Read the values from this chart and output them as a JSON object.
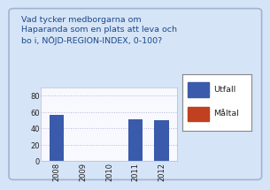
{
  "title_lines": [
    "Vad tycker medborgarna om",
    "Haparanda som en plats att leva och",
    "bo i, NÖJD-REGION-INDEX, 0-100?"
  ],
  "categories": [
    "2008",
    "2009",
    "2010",
    "2011",
    "2012"
  ],
  "utfall_values": [
    57,
    0,
    0,
    51,
    50
  ],
  "bar_color_utfall": "#3a5aab",
  "bar_color_maltal": "#c04020",
  "ylim": [
    0,
    90
  ],
  "yticks": [
    0,
    20,
    40,
    60,
    80
  ],
  "title_color": "#1a4a8a",
  "title_fontsize": 6.8,
  "background_color": "#d6e4f7",
  "plot_bg": "#f8f8ff",
  "legend_utfall": "Utfall",
  "legend_maltal": "Måltal",
  "grid_color": "#b0b8d8",
  "axis_fontsize": 6.0,
  "legend_fontsize": 6.8,
  "border_color": "#a0b4d0"
}
